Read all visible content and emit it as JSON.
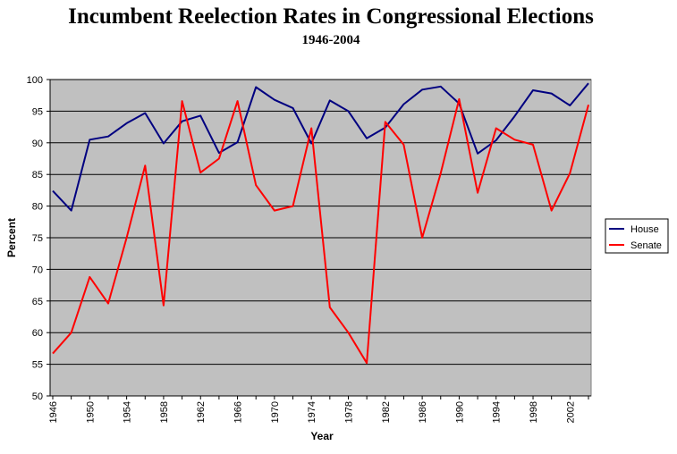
{
  "chart_data": {
    "type": "line",
    "title": "Incumbent Reelection Rates in Congressional Elections",
    "subtitle": "1946-2004",
    "xlabel": "Year",
    "ylabel": "Percent",
    "ylim": [
      50,
      100
    ],
    "yticks": [
      50,
      55,
      60,
      65,
      70,
      75,
      80,
      85,
      90,
      95,
      100
    ],
    "xlim": [
      1946,
      2004
    ],
    "xtick_labels": [
      1946,
      1950,
      1954,
      1958,
      1962,
      1966,
      1970,
      1974,
      1978,
      1982,
      1986,
      1990,
      1994,
      1998,
      2002
    ],
    "grid": "horizontal",
    "legend": "right",
    "x": [
      1946,
      1948,
      1950,
      1952,
      1954,
      1956,
      1958,
      1960,
      1962,
      1964,
      1966,
      1968,
      1970,
      1972,
      1974,
      1976,
      1978,
      1980,
      1982,
      1984,
      1986,
      1988,
      1990,
      1992,
      1994,
      1996,
      1998,
      2000,
      2002,
      2004
    ],
    "series": [
      {
        "name": "House",
        "color": "#000080",
        "values": [
          82.4,
          79.3,
          90.5,
          91.0,
          93.1,
          94.7,
          89.9,
          93.4,
          94.3,
          88.4,
          90.1,
          98.8,
          96.8,
          95.5,
          89.9,
          96.7,
          95.0,
          90.7,
          92.4,
          96.1,
          98.4,
          98.9,
          96.2,
          88.3,
          90.4,
          94.2,
          98.3,
          97.8,
          95.9,
          99.4
        ]
      },
      {
        "name": "Senate",
        "color": "#ff0000",
        "values": [
          56.7,
          60.0,
          68.8,
          64.6,
          75.0,
          86.4,
          64.3,
          96.6,
          85.3,
          87.5,
          96.6,
          83.3,
          79.3,
          80.0,
          92.3,
          64.0,
          60.0,
          55.2,
          93.3,
          89.7,
          75.0,
          85.2,
          96.9,
          82.1,
          92.3,
          90.5,
          89.7,
          79.3,
          85.2,
          96.0
        ]
      }
    ]
  },
  "colors": {
    "plot_background": "#c0c0c0",
    "house": "#000080",
    "senate": "#ff0000"
  }
}
